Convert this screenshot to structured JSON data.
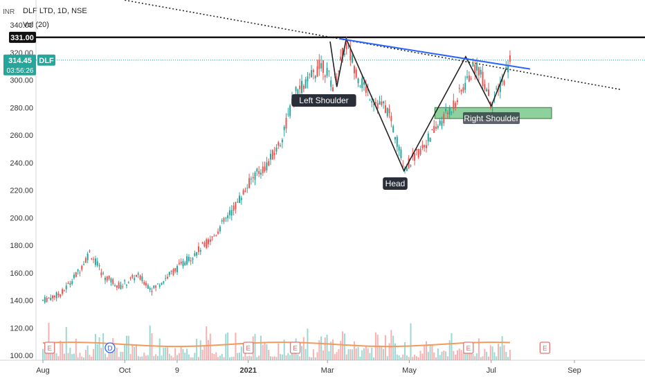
{
  "header": {
    "currency": "INR",
    "symbol_line": "DLF LTD, 1D, NSE",
    "indicator": "Vol (20)"
  },
  "price_tags": {
    "resistance": "331.00",
    "last_price": "314.45",
    "countdown": "03:56:26",
    "ticker": "DLF"
  },
  "annotations": {
    "left_shoulder": "Left Shoulder",
    "head": "Head",
    "right_shoulder": "Right Shoulder"
  },
  "events": {
    "earnings": "E",
    "dividend": "D"
  },
  "colors": {
    "up": "#26a69a",
    "down": "#ef5350",
    "volume_ma": "#f39a5a",
    "trendline": "#2962ff",
    "zone": "#8fd19e",
    "last_price": "#26a69a"
  },
  "chart_data": {
    "type": "candlestick",
    "title": "DLF LTD, 1D, NSE",
    "ylim": [
      100,
      345
    ],
    "y_ticks": [
      100,
      120,
      140,
      160,
      180,
      200,
      220,
      240,
      260,
      280,
      300,
      320,
      340
    ],
    "y_tick_labels": [
      "100.00",
      "120.00",
      "140.00",
      "160.00",
      "180.00",
      "200.00",
      "220.00",
      "240.00",
      "260.00",
      "280.00",
      "300.00",
      "320.00",
      "340.00"
    ],
    "x_labels": [
      "Aug",
      "Oct",
      "9",
      "2021",
      "Mar",
      "May",
      "Jul",
      "Sep"
    ],
    "x_label_dates": [
      "2020-08-01",
      "2020-10-01",
      "2020-11-09",
      "2021-01-01",
      "2021-03-01",
      "2021-05-01",
      "2021-07-01",
      "2021-09-01"
    ],
    "price_path": [
      [
        "2020-08-01",
        140
      ],
      [
        "2020-08-15",
        145
      ],
      [
        "2020-08-27",
        160
      ],
      [
        "2020-09-05",
        175
      ],
      [
        "2020-09-15",
        158
      ],
      [
        "2020-09-28",
        150
      ],
      [
        "2020-10-10",
        158
      ],
      [
        "2020-10-22",
        148
      ],
      [
        "2020-11-05",
        160
      ],
      [
        "2020-11-20",
        172
      ],
      [
        "2020-12-05",
        185
      ],
      [
        "2020-12-20",
        205
      ],
      [
        "2021-01-05",
        230
      ],
      [
        "2021-01-15",
        238
      ],
      [
        "2021-01-25",
        255
      ],
      [
        "2021-02-05",
        290
      ],
      [
        "2021-02-15",
        300
      ],
      [
        "2021-02-25",
        312
      ],
      [
        "2021-03-05",
        296
      ],
      [
        "2021-03-15",
        326
      ],
      [
        "2021-03-25",
        300
      ],
      [
        "2021-04-05",
        285
      ],
      [
        "2021-04-15",
        278
      ],
      [
        "2021-04-28",
        236
      ],
      [
        "2021-05-10",
        250
      ],
      [
        "2021-05-25",
        270
      ],
      [
        "2021-06-05",
        285
      ],
      [
        "2021-06-20",
        312
      ],
      [
        "2021-07-02",
        283
      ],
      [
        "2021-07-10",
        300
      ],
      [
        "2021-07-15",
        315
      ]
    ],
    "last_price": 314.45,
    "resistance_level": 331.0,
    "support_zone": [
      272,
      280
    ],
    "support_zone_dates": [
      "2021-05-20",
      "2021-08-15"
    ],
    "neckline": [
      [
        "2021-03-10",
        330
      ],
      [
        "2021-07-30",
        308
      ]
    ],
    "long_trendline": [
      [
        "2020-10-01",
        358
      ],
      [
        "2021-10-06",
        293
      ]
    ],
    "pattern_path": [
      [
        "2021-03-03",
        328
      ],
      [
        "2021-03-08",
        295
      ],
      [
        "2021-03-15",
        330
      ],
      [
        "2021-04-27",
        234
      ],
      [
        "2021-06-12",
        317
      ],
      [
        "2021-07-01",
        281
      ],
      [
        "2021-07-12",
        308
      ]
    ],
    "volume_ma_level": 108,
    "earnings_dates": [
      "2020-08-06",
      "2021-01-01",
      "2021-02-05",
      "2021-06-14",
      "2021-08-10"
    ],
    "dividend_dates": [
      "2020-09-20"
    ]
  }
}
